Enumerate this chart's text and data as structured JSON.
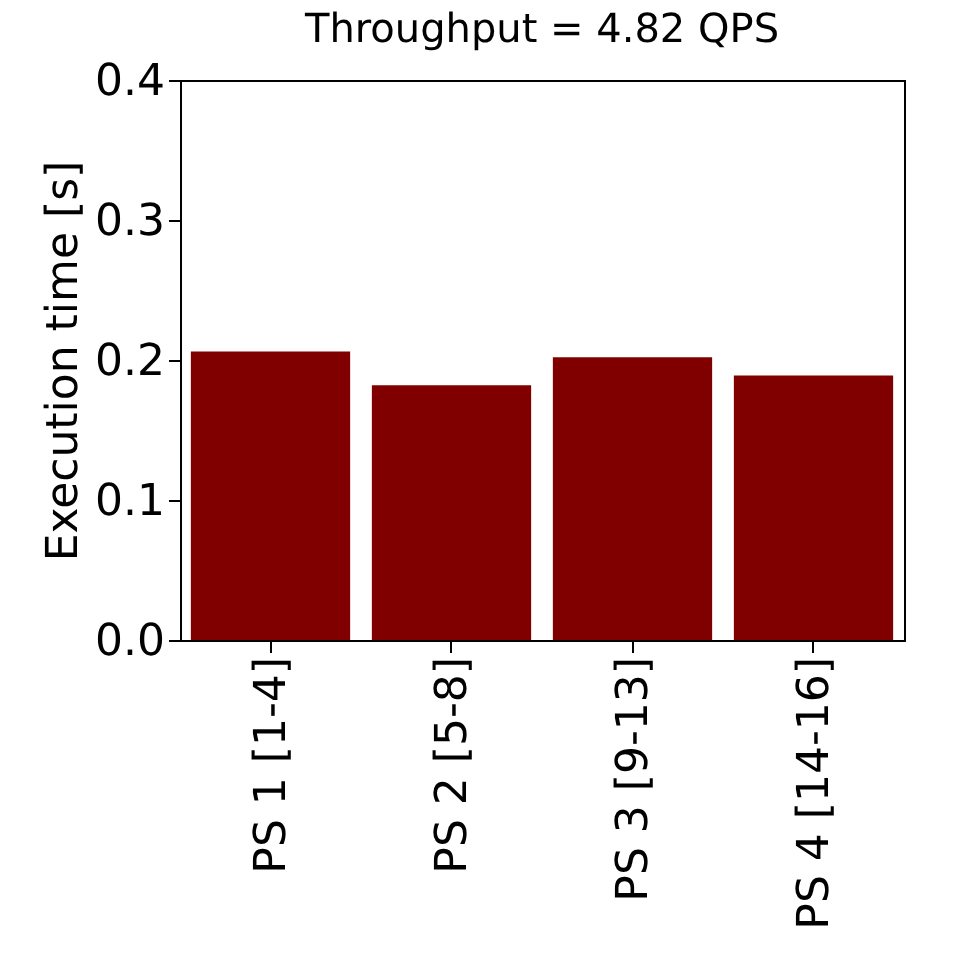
{
  "chart_data": {
    "type": "bar",
    "title": "Throughput = 4.82 QPS",
    "ylabel": "Execution time [s]",
    "categories": [
      "PS 1 [1-4]",
      "PS 2 [5-8]",
      "PS 3 [9-13]",
      "PS 4 [14-16]"
    ],
    "values": [
      0.206,
      0.182,
      0.202,
      0.189
    ],
    "color": "#800000",
    "ylim": [
      0,
      0.4
    ],
    "yticks": [
      {
        "value": 0,
        "label": "0.0"
      },
      0.1,
      0.2,
      0.3,
      0.4
    ],
    "grid": false
  }
}
